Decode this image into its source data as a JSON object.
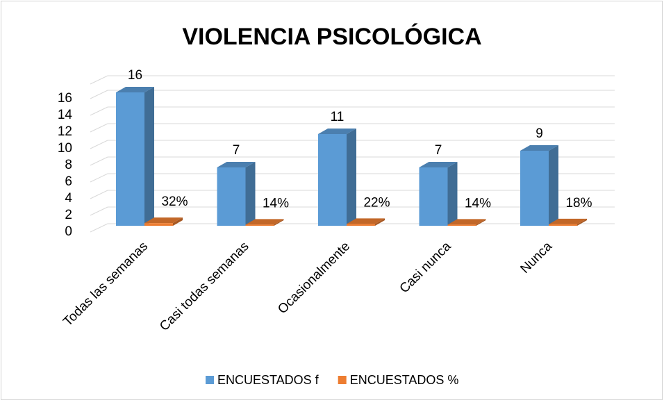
{
  "chart_data": {
    "type": "bar",
    "title": "VIOLENCIA PSICOLÓGICA",
    "categories": [
      "Todas las semanas",
      "Casi todas semanas",
      "Ocasionalmente",
      "Casi nunca",
      "Nunca"
    ],
    "series": [
      {
        "name": "ENCUESTADOS f",
        "color": "#5b9bd5",
        "values": [
          16,
          7,
          11,
          7,
          9
        ]
      },
      {
        "name": "ENCUESTADOS %",
        "color": "#ed7d31",
        "values": [
          0.32,
          0.14,
          0.22,
          0.14,
          0.18
        ],
        "value_labels": [
          "32%",
          "14%",
          "22%",
          "14%",
          "18%"
        ]
      }
    ],
    "ylim": [
      0,
      16
    ],
    "yticks": [
      0,
      2,
      4,
      6,
      8,
      10,
      12,
      14,
      16
    ],
    "grid": true,
    "legend": "bottom"
  }
}
